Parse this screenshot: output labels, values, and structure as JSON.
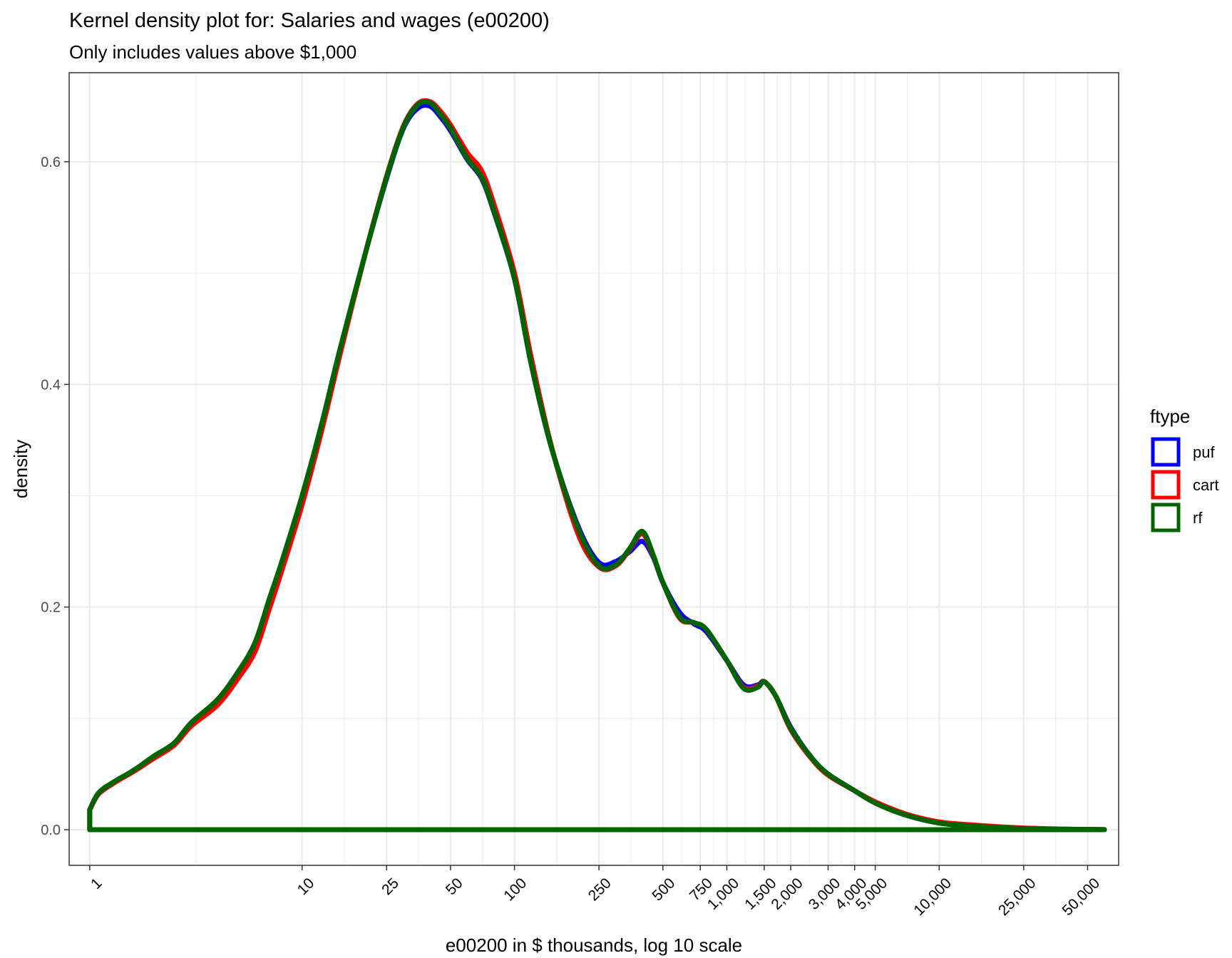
{
  "chart_data": {
    "type": "area",
    "title": "Kernel density plot for: Salaries and wages (e00200)",
    "subtitle": "Only includes values above $1,000",
    "xlabel": "e00200 in $ thousands, log 10 scale",
    "ylabel": "density",
    "x_scale": "log10",
    "xlim": [
      0.8,
      70000
    ],
    "ylim": [
      -0.032,
      0.68
    ],
    "grid": true,
    "x_ticks": [
      {
        "value": 1,
        "label": "1"
      },
      {
        "value": 10,
        "label": "10"
      },
      {
        "value": 25,
        "label": "25"
      },
      {
        "value": 50,
        "label": "50"
      },
      {
        "value": 100,
        "label": "100"
      },
      {
        "value": 250,
        "label": "250"
      },
      {
        "value": 500,
        "label": "500"
      },
      {
        "value": 750,
        "label": "750"
      },
      {
        "value": 1000,
        "label": "1,000"
      },
      {
        "value": 1500,
        "label": "1,500"
      },
      {
        "value": 2000,
        "label": "2,000"
      },
      {
        "value": 3000,
        "label": "3,000"
      },
      {
        "value": 4000,
        "label": "4,000"
      },
      {
        "value": 5000,
        "label": "5,000"
      },
      {
        "value": 10000,
        "label": "10,000"
      },
      {
        "value": 25000,
        "label": "25,000"
      },
      {
        "value": 50000,
        "label": "50,000"
      }
    ],
    "y_ticks": [
      {
        "value": 0.0,
        "label": "0.0"
      },
      {
        "value": 0.2,
        "label": "0.2"
      },
      {
        "value": 0.4,
        "label": "0.4"
      },
      {
        "value": 0.6,
        "label": "0.6"
      }
    ],
    "legend": {
      "title": "ftype",
      "position": "right",
      "entries": [
        {
          "name": "puf",
          "color": "#0000FF"
        },
        {
          "name": "cart",
          "color": "#FF0000"
        },
        {
          "name": "rf",
          "color": "#006400"
        }
      ]
    },
    "series": [
      {
        "name": "puf",
        "color": "#0000FF",
        "x": [
          1,
          1.1,
          1.3,
          1.6,
          2,
          2.5,
          3,
          4,
          5,
          6,
          7,
          8,
          10,
          12.5,
          15,
          20,
          25,
          30,
          35,
          40,
          45,
          50,
          60,
          70,
          80,
          100,
          120,
          150,
          200,
          250,
          300,
          350,
          400,
          450,
          500,
          600,
          700,
          800,
          1000,
          1200,
          1400,
          1500,
          1700,
          2000,
          2500,
          3000,
          4000,
          5000,
          7000,
          10000,
          15000,
          25000,
          40000,
          60000
        ],
        "values": [
          0.018,
          0.032,
          0.042,
          0.053,
          0.065,
          0.077,
          0.095,
          0.115,
          0.14,
          0.166,
          0.205,
          0.238,
          0.298,
          0.366,
          0.428,
          0.52,
          0.585,
          0.63,
          0.648,
          0.65,
          0.64,
          0.628,
          0.602,
          0.585,
          0.555,
          0.495,
          0.418,
          0.342,
          0.272,
          0.24,
          0.241,
          0.25,
          0.259,
          0.245,
          0.222,
          0.195,
          0.185,
          0.178,
          0.152,
          0.13,
          0.13,
          0.133,
          0.12,
          0.092,
          0.065,
          0.05,
          0.035,
          0.024,
          0.013,
          0.006,
          0.003,
          0.001,
          0.0004,
          0.0001
        ]
      },
      {
        "name": "cart",
        "color": "#FF0000",
        "x": [
          1,
          1.1,
          1.3,
          1.6,
          2,
          2.5,
          3,
          4,
          5,
          6,
          7,
          8,
          10,
          12.5,
          15,
          20,
          25,
          30,
          35,
          40,
          45,
          50,
          60,
          70,
          80,
          100,
          120,
          150,
          200,
          250,
          300,
          350,
          400,
          450,
          500,
          600,
          700,
          800,
          1000,
          1200,
          1400,
          1500,
          1700,
          2000,
          2500,
          3000,
          4000,
          5000,
          7000,
          10000,
          15000,
          25000,
          40000,
          60000
        ],
        "values": [
          0.018,
          0.032,
          0.042,
          0.052,
          0.064,
          0.076,
          0.093,
          0.112,
          0.136,
          0.16,
          0.198,
          0.232,
          0.292,
          0.362,
          0.425,
          0.52,
          0.587,
          0.632,
          0.652,
          0.654,
          0.645,
          0.633,
          0.608,
          0.592,
          0.562,
          0.5,
          0.424,
          0.343,
          0.265,
          0.236,
          0.237,
          0.252,
          0.266,
          0.246,
          0.222,
          0.19,
          0.186,
          0.18,
          0.152,
          0.128,
          0.129,
          0.133,
          0.12,
          0.09,
          0.064,
          0.049,
          0.035,
          0.025,
          0.014,
          0.007,
          0.004,
          0.0015,
          0.0005,
          0.0001
        ]
      },
      {
        "name": "rf",
        "color": "#006400",
        "x": [
          1,
          1.1,
          1.3,
          1.6,
          2,
          2.5,
          3,
          4,
          5,
          6,
          7,
          8,
          10,
          12.5,
          15,
          20,
          25,
          30,
          35,
          40,
          45,
          50,
          60,
          70,
          80,
          100,
          120,
          150,
          200,
          250,
          300,
          350,
          400,
          450,
          500,
          600,
          700,
          800,
          1000,
          1200,
          1400,
          1500,
          1700,
          2000,
          2500,
          3000,
          4000,
          5000,
          7000,
          10000,
          15000,
          25000,
          40000,
          60000
        ],
        "values": [
          0.018,
          0.033,
          0.043,
          0.053,
          0.066,
          0.078,
          0.096,
          0.117,
          0.142,
          0.168,
          0.207,
          0.24,
          0.3,
          0.368,
          0.43,
          0.52,
          0.586,
          0.631,
          0.651,
          0.653,
          0.642,
          0.63,
          0.603,
          0.586,
          0.556,
          0.495,
          0.418,
          0.342,
          0.27,
          0.237,
          0.238,
          0.253,
          0.268,
          0.247,
          0.222,
          0.191,
          0.186,
          0.18,
          0.152,
          0.127,
          0.128,
          0.133,
          0.12,
          0.091,
          0.065,
          0.05,
          0.035,
          0.024,
          0.013,
          0.006,
          0.003,
          0.001,
          0.0004,
          0.0001
        ]
      }
    ]
  }
}
